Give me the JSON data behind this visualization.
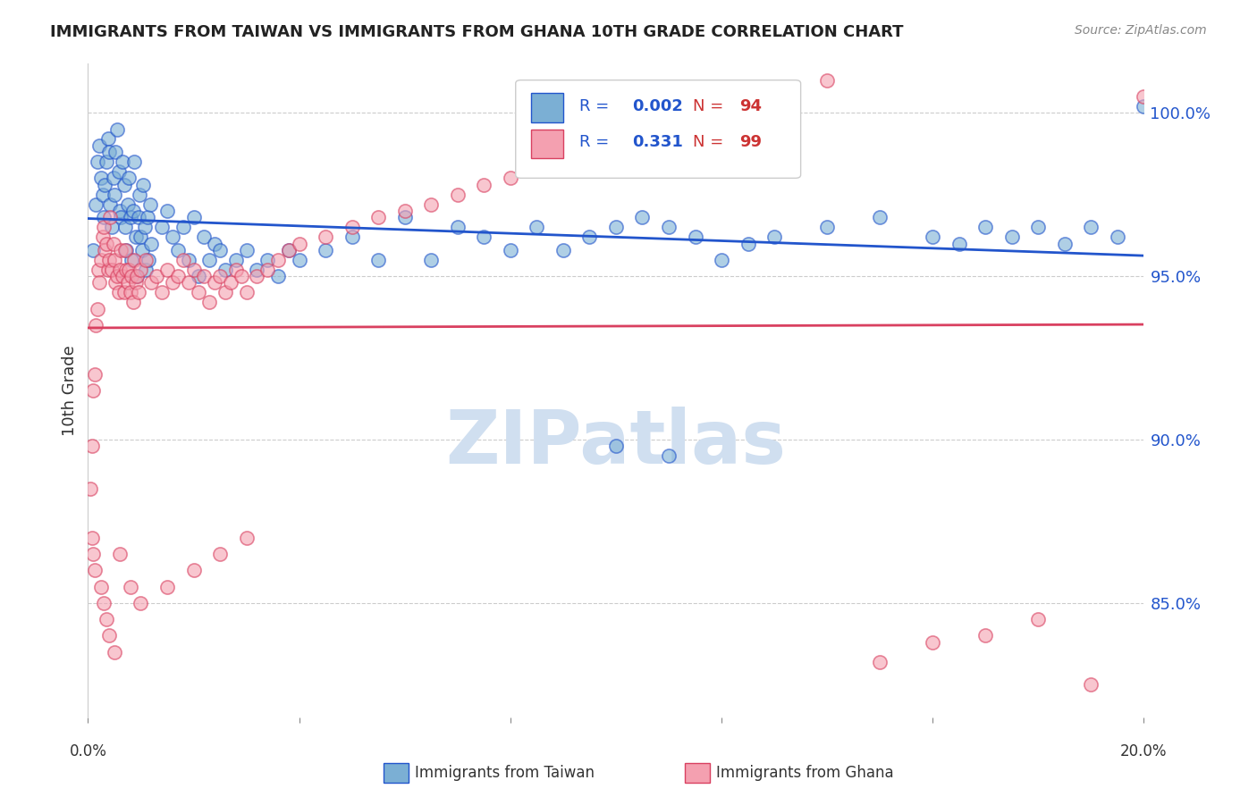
{
  "title": "IMMIGRANTS FROM TAIWAN VS IMMIGRANTS FROM GHANA 10TH GRADE CORRELATION CHART",
  "source": "Source: ZipAtlas.com",
  "ylabel": "10th Grade",
  "xmin": 0.0,
  "xmax": 20.0,
  "ymin": 81.5,
  "ymax": 101.5,
  "yticks": [
    85.0,
    90.0,
    95.0,
    100.0
  ],
  "ytick_labels": [
    "85.0%",
    "90.0%",
    "95.0%",
    "100.0%"
  ],
  "taiwan_R": 0.002,
  "taiwan_N": 94,
  "ghana_R": 0.331,
  "ghana_N": 99,
  "blue_color": "#7bafd4",
  "pink_color": "#f4a0b0",
  "blue_line_color": "#2255cc",
  "pink_line_color": "#d94060",
  "legend_R_color": "#2255cc",
  "legend_N_color": "#cc3333",
  "watermark_color": "#d0dff0",
  "grid_color": "#cccccc",
  "axis_color": "#2255cc",
  "taiwan_x": [
    0.1,
    0.15,
    0.18,
    0.22,
    0.25,
    0.28,
    0.3,
    0.32,
    0.35,
    0.38,
    0.4,
    0.42,
    0.45,
    0.48,
    0.5,
    0.52,
    0.55,
    0.58,
    0.6,
    0.62,
    0.65,
    0.68,
    0.7,
    0.72,
    0.75,
    0.78,
    0.8,
    0.82,
    0.85,
    0.88,
    0.9,
    0.92,
    0.95,
    0.98,
    1.0,
    1.02,
    1.05,
    1.08,
    1.1,
    1.12,
    1.15,
    1.18,
    1.2,
    1.4,
    1.5,
    1.6,
    1.7,
    1.8,
    1.9,
    2.0,
    2.1,
    2.2,
    2.3,
    2.4,
    2.5,
    2.6,
    2.8,
    3.0,
    3.2,
    3.4,
    3.6,
    3.8,
    4.0,
    4.5,
    5.0,
    5.5,
    6.0,
    6.5,
    7.0,
    7.5,
    8.0,
    8.5,
    9.0,
    9.5,
    10.0,
    10.5,
    11.0,
    11.5,
    12.0,
    12.5,
    13.0,
    14.0,
    15.0,
    16.0,
    16.5,
    17.0,
    17.5,
    18.0,
    18.5,
    19.0,
    19.5,
    20.0,
    10.0,
    11.0
  ],
  "taiwan_y": [
    95.8,
    97.2,
    98.5,
    99.0,
    98.0,
    97.5,
    96.8,
    97.8,
    98.5,
    99.2,
    98.8,
    97.2,
    96.5,
    98.0,
    97.5,
    98.8,
    99.5,
    98.2,
    97.0,
    96.8,
    98.5,
    97.8,
    96.5,
    95.8,
    97.2,
    98.0,
    96.8,
    95.5,
    97.0,
    98.5,
    96.2,
    95.0,
    96.8,
    97.5,
    96.2,
    95.8,
    97.8,
    96.5,
    95.2,
    96.8,
    95.5,
    97.2,
    96.0,
    96.5,
    97.0,
    96.2,
    95.8,
    96.5,
    95.5,
    96.8,
    95.0,
    96.2,
    95.5,
    96.0,
    95.8,
    95.2,
    95.5,
    95.8,
    95.2,
    95.5,
    95.0,
    95.8,
    95.5,
    95.8,
    96.2,
    95.5,
    96.8,
    95.5,
    96.5,
    96.2,
    95.8,
    96.5,
    95.8,
    96.2,
    96.5,
    96.8,
    96.5,
    96.2,
    95.5,
    96.0,
    96.2,
    96.5,
    96.8,
    96.2,
    96.0,
    96.5,
    96.2,
    96.5,
    96.0,
    96.5,
    96.2,
    100.2,
    89.8,
    89.5
  ],
  "ghana_x": [
    0.05,
    0.08,
    0.1,
    0.12,
    0.15,
    0.18,
    0.2,
    0.22,
    0.25,
    0.28,
    0.3,
    0.32,
    0.35,
    0.38,
    0.4,
    0.42,
    0.45,
    0.48,
    0.5,
    0.52,
    0.55,
    0.58,
    0.6,
    0.62,
    0.65,
    0.68,
    0.7,
    0.72,
    0.75,
    0.78,
    0.8,
    0.82,
    0.85,
    0.88,
    0.9,
    0.92,
    0.95,
    1.0,
    1.1,
    1.2,
    1.3,
    1.4,
    1.5,
    1.6,
    1.7,
    1.8,
    1.9,
    2.0,
    2.1,
    2.2,
    2.3,
    2.4,
    2.5,
    2.6,
    2.7,
    2.8,
    2.9,
    3.0,
    3.2,
    3.4,
    3.6,
    3.8,
    4.0,
    4.5,
    5.0,
    5.5,
    6.0,
    6.5,
    7.0,
    7.5,
    8.0,
    8.5,
    9.0,
    10.0,
    11.0,
    12.0,
    13.0,
    14.0,
    15.0,
    16.0,
    17.0,
    18.0,
    19.0,
    20.0,
    0.08,
    0.1,
    0.12,
    0.25,
    0.3,
    0.35,
    0.4,
    0.5,
    0.6,
    0.8,
    1.0,
    1.5,
    2.0,
    2.5,
    3.0
  ],
  "ghana_y": [
    88.5,
    89.8,
    91.5,
    92.0,
    93.5,
    94.0,
    95.2,
    94.8,
    95.5,
    96.2,
    96.5,
    95.8,
    96.0,
    95.2,
    95.5,
    96.8,
    95.2,
    96.0,
    95.5,
    94.8,
    95.0,
    94.5,
    95.2,
    95.8,
    95.0,
    94.5,
    95.8,
    95.2,
    94.8,
    95.2,
    94.5,
    95.0,
    94.2,
    95.5,
    94.8,
    95.0,
    94.5,
    95.2,
    95.5,
    94.8,
    95.0,
    94.5,
    95.2,
    94.8,
    95.0,
    95.5,
    94.8,
    95.2,
    94.5,
    95.0,
    94.2,
    94.8,
    95.0,
    94.5,
    94.8,
    95.2,
    95.0,
    94.5,
    95.0,
    95.2,
    95.5,
    95.8,
    96.0,
    96.2,
    96.5,
    96.8,
    97.0,
    97.2,
    97.5,
    97.8,
    98.0,
    98.5,
    98.8,
    99.0,
    99.5,
    100.0,
    100.5,
    101.0,
    83.2,
    83.8,
    84.0,
    84.5,
    82.5,
    100.5,
    87.0,
    86.5,
    86.0,
    85.5,
    85.0,
    84.5,
    84.0,
    83.5,
    86.5,
    85.5,
    85.0,
    85.5,
    86.0,
    86.5,
    87.0
  ]
}
